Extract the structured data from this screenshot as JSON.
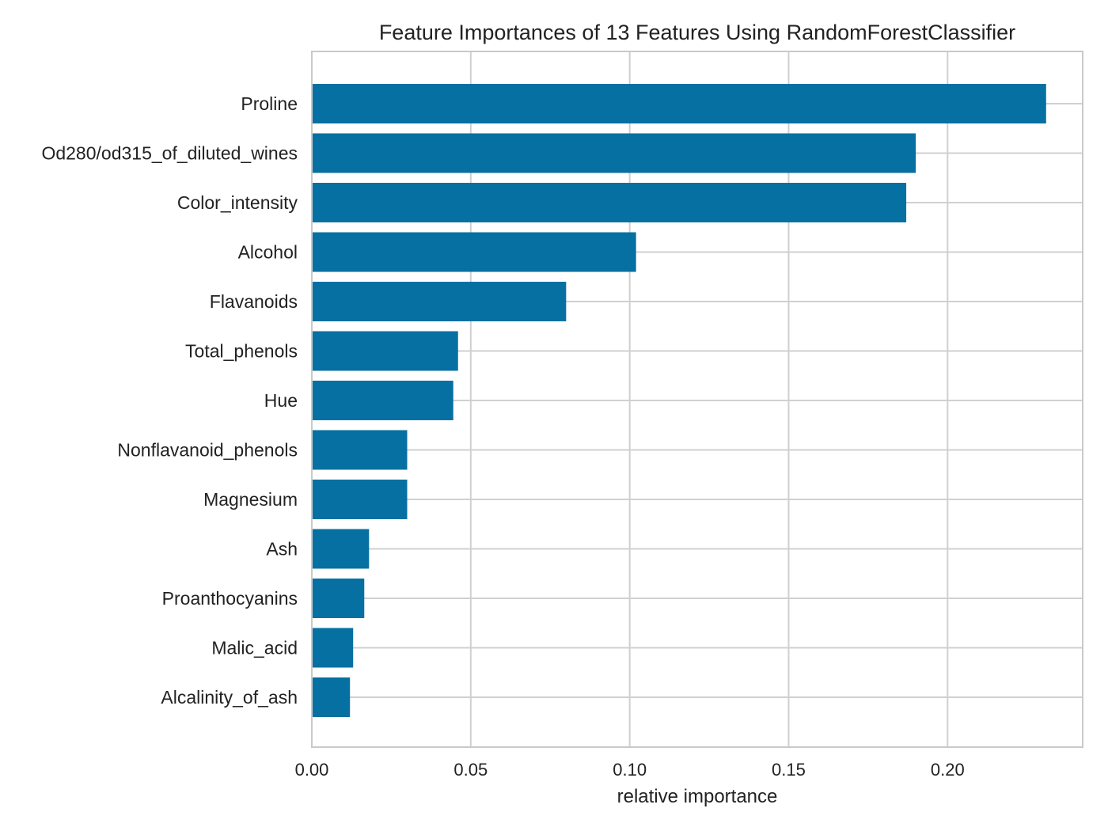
{
  "chart_data": {
    "type": "bar",
    "orientation": "horizontal",
    "title": "Feature Importances of 13 Features Using RandomForestClassifier",
    "xlabel": "relative importance",
    "ylabel": "",
    "xlim": [
      0,
      0.2425
    ],
    "xticks": [
      0.0,
      0.05,
      0.1,
      0.15,
      0.2
    ],
    "xtick_labels": [
      "0.00",
      "0.05",
      "0.10",
      "0.15",
      "0.20"
    ],
    "grid": true,
    "bar_color": "#0770a2",
    "categories": [
      "Proline",
      "Od280/od315_of_diluted_wines",
      "Color_intensity",
      "Alcohol",
      "Flavanoids",
      "Total_phenols",
      "Hue",
      "Nonflavanoid_phenols",
      "Magnesium",
      "Ash",
      "Proanthocyanins",
      "Malic_acid",
      "Alcalinity_of_ash"
    ],
    "values": [
      0.231,
      0.19,
      0.187,
      0.102,
      0.08,
      0.046,
      0.0445,
      0.03,
      0.03,
      0.018,
      0.0165,
      0.013,
      0.012
    ]
  }
}
